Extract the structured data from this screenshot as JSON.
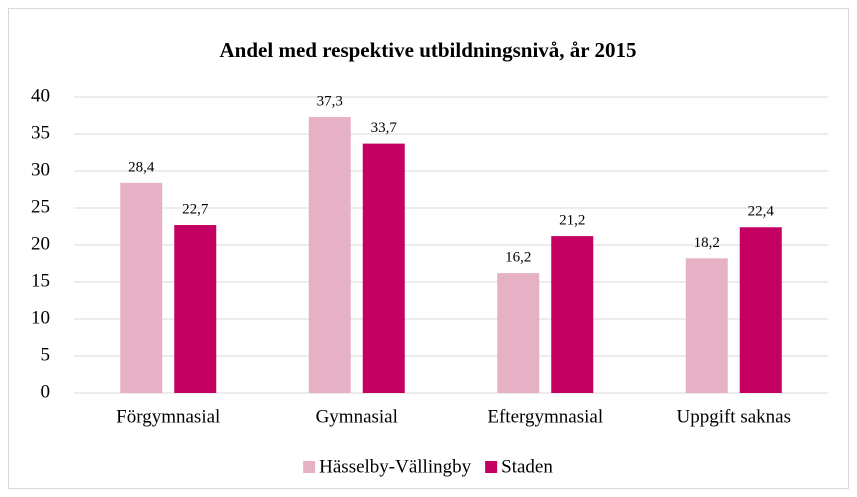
{
  "chart_data": {
    "type": "bar",
    "title": "Andel med respektive utbildningsnivå, år 2015",
    "categories": [
      "Förgymnasial",
      "Gymnasial",
      "Eftergymnasial",
      "Uppgift saknas"
    ],
    "series": [
      {
        "name": "Hässelby-Vällingby",
        "color": "#e6b1c5",
        "values": [
          28.4,
          37.3,
          16.2,
          18.2
        ],
        "value_labels": [
          "28,4",
          "37,3",
          "16,2",
          "18,2"
        ]
      },
      {
        "name": "Staden",
        "color": "#c40062",
        "values": [
          22.7,
          33.7,
          21.2,
          22.4
        ],
        "value_labels": [
          "22,7",
          "33,7",
          "21,2",
          "22,4"
        ]
      }
    ],
    "ylim": [
      0,
      40
    ],
    "yticks": [
      0,
      5,
      10,
      15,
      20,
      25,
      30,
      35,
      40
    ],
    "grid": true,
    "legend": "bottom"
  }
}
